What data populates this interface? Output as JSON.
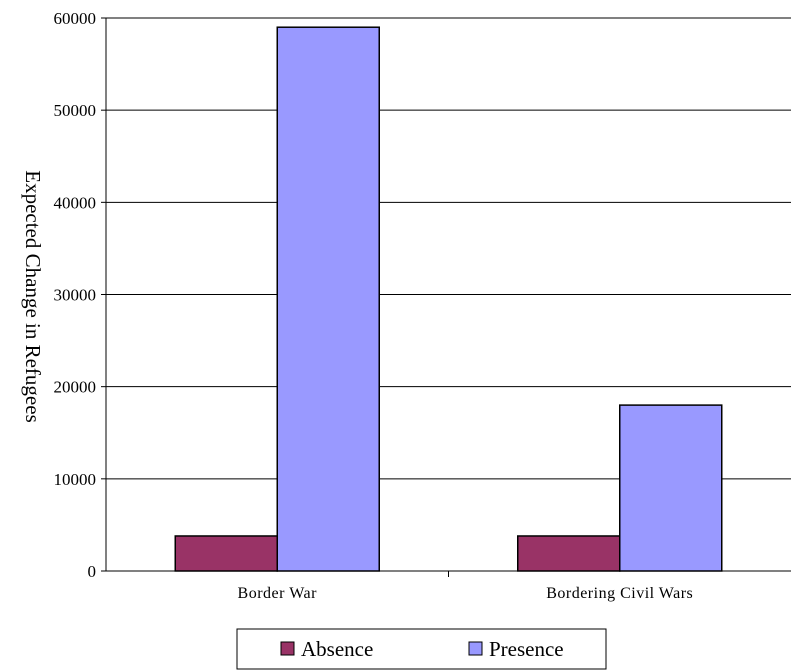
{
  "chart_data": {
    "type": "bar",
    "categories": [
      "Border War",
      "Bordering Civil Wars"
    ],
    "series": [
      {
        "name": "Absence",
        "values": [
          3800,
          3800
        ],
        "color": "#993366"
      },
      {
        "name": "Presence",
        "values": [
          59000,
          18000
        ],
        "color": "#9999ff"
      }
    ],
    "ylabel": "Expected Change in Refugees",
    "ylim": [
      0,
      60000
    ],
    "yticks": [
      0,
      10000,
      20000,
      30000,
      40000,
      50000,
      60000
    ],
    "grid": true,
    "legend_position": "bottom"
  }
}
